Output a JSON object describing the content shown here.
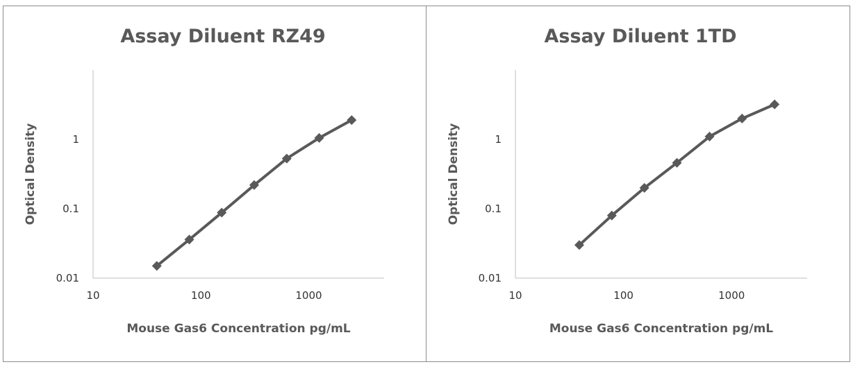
{
  "chart_data": [
    {
      "type": "line",
      "title": "Assay Diluent RZ49",
      "xlabel": "Mouse Gas6 Concentration pg/mL",
      "ylabel": "Optical Density",
      "x_scale": "log",
      "y_scale": "log",
      "xlim": [
        10,
        5000
      ],
      "ylim": [
        0.01,
        10
      ],
      "x_ticks": [
        "10",
        "100",
        "1000"
      ],
      "y_ticks": [
        "0.01",
        "0.1",
        "1"
      ],
      "grid": false,
      "series": [
        {
          "x": [
            39,
            78,
            156,
            312,
            625,
            1250,
            2500
          ],
          "values": [
            0.015,
            0.036,
            0.088,
            0.22,
            0.53,
            1.05,
            1.9
          ]
        }
      ],
      "line_color": "#595959"
    },
    {
      "type": "line",
      "title": "Assay Diluent 1TD",
      "xlabel": "Mouse Gas6 Concentration pg/mL",
      "ylabel": "Optical Density",
      "x_scale": "log",
      "y_scale": "log",
      "xlim": [
        10,
        5000
      ],
      "ylim": [
        0.01,
        10
      ],
      "x_ticks": [
        "10",
        "100",
        "1000"
      ],
      "y_ticks": [
        "0.01",
        "0.1",
        "1"
      ],
      "grid": false,
      "series": [
        {
          "x": [
            39,
            78,
            156,
            312,
            625,
            1250,
            2500
          ],
          "values": [
            0.03,
            0.08,
            0.2,
            0.46,
            1.1,
            2.0,
            3.2
          ]
        }
      ],
      "line_color": "#595959"
    }
  ]
}
